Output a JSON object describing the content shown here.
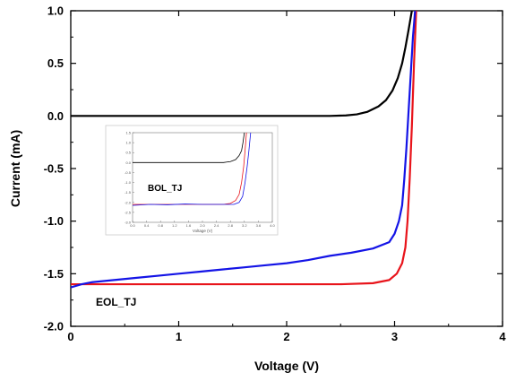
{
  "chart_data": {
    "type": "line",
    "xlabel": "Voltage (V)",
    "ylabel": "Current (mA)",
    "xlim": [
      0,
      4
    ],
    "ylim": [
      -2.0,
      1.0
    ],
    "x_ticks": [
      "0",
      "1",
      "2",
      "3",
      "4"
    ],
    "y_ticks": [
      "1.0",
      "0.5",
      "0.0",
      "-0.5",
      "-1.0",
      "-1.5",
      "-2.0"
    ],
    "annotation": "EOL_TJ",
    "colors": {
      "black_curve": "#000000",
      "red_curve": "#e8141b",
      "blue_curve": "#1414e6"
    },
    "series": [
      {
        "color": "black",
        "x": [
          0,
          0.5,
          1.0,
          1.5,
          2.0,
          2.4,
          2.55,
          2.65,
          2.75,
          2.85,
          2.92,
          2.98,
          3.03,
          3.07,
          3.1,
          3.13,
          3.16
        ],
        "y": [
          0,
          0,
          0,
          0,
          0,
          0.0,
          0.005,
          0.015,
          0.04,
          0.09,
          0.15,
          0.24,
          0.36,
          0.5,
          0.65,
          0.82,
          1.0
        ]
      },
      {
        "color": "red",
        "x": [
          0,
          0.5,
          1.0,
          1.5,
          2.0,
          2.5,
          2.8,
          2.95,
          3.02,
          3.07,
          3.1,
          3.12,
          3.14,
          3.16,
          3.18,
          3.2
        ],
        "y": [
          -1.6,
          -1.6,
          -1.6,
          -1.6,
          -1.6,
          -1.6,
          -1.59,
          -1.56,
          -1.5,
          -1.4,
          -1.25,
          -1.0,
          -0.6,
          -0.1,
          0.5,
          1.0
        ]
      },
      {
        "color": "blue",
        "x": [
          0,
          0.1,
          0.2,
          0.4,
          0.6,
          0.8,
          1.0,
          1.2,
          1.4,
          1.6,
          1.8,
          2.0,
          2.2,
          2.4,
          2.6,
          2.8,
          2.95,
          3.0,
          3.04,
          3.07,
          3.09,
          3.11,
          3.13,
          3.15,
          3.17,
          3.19
        ],
        "y": [
          -1.63,
          -1.6,
          -1.58,
          -1.56,
          -1.54,
          -1.52,
          -1.5,
          -1.48,
          -1.46,
          -1.44,
          -1.42,
          -1.4,
          -1.37,
          -1.33,
          -1.3,
          -1.26,
          -1.2,
          -1.12,
          -1.0,
          -0.85,
          -0.6,
          -0.3,
          0.05,
          0.4,
          0.75,
          1.0
        ]
      }
    ],
    "inset": {
      "xlabel": "Voltage (V)",
      "xlim": [
        0,
        4.0
      ],
      "ylim": [
        -3.0,
        1.5
      ],
      "x_ticks": [
        "0.0",
        "0.4",
        "0.8",
        "1.2",
        "1.6",
        "2.0",
        "2.4",
        "2.8",
        "3.2",
        "3.6",
        "4.0"
      ],
      "y_ticks": [
        "1.5",
        "1.0",
        "0.5",
        "0.0",
        "-0.5",
        "-1.0",
        "-1.5",
        "-2.0",
        "-2.5",
        "-3.0"
      ],
      "annotation": "BOL_TJ",
      "series": [
        {
          "color": "black",
          "x": [
            0,
            1,
            2,
            2.6,
            2.8,
            2.95,
            3.05,
            3.12,
            3.16,
            3.2
          ],
          "y": [
            0,
            0,
            0,
            0,
            0.05,
            0.15,
            0.35,
            0.6,
            1.0,
            1.5
          ]
        },
        {
          "color": "red",
          "x": [
            0,
            1,
            2,
            2.6,
            2.8,
            2.95,
            3.05,
            3.12,
            3.18,
            3.22,
            3.26
          ],
          "y": [
            -2.1,
            -2.1,
            -2.1,
            -2.1,
            -2.05,
            -1.9,
            -1.6,
            -1.0,
            -0.2,
            0.6,
            1.5
          ]
        },
        {
          "color": "blue",
          "x": [
            0,
            0.5,
            1.0,
            1.5,
            2.0,
            2.5,
            2.9,
            3.05,
            3.15,
            3.22,
            3.28,
            3.33,
            3.38
          ],
          "y": [
            -2.15,
            -2.1,
            -2.12,
            -2.08,
            -2.1,
            -2.1,
            -2.1,
            -2.0,
            -1.7,
            -1.0,
            -0.2,
            0.6,
            1.5
          ]
        }
      ]
    }
  }
}
